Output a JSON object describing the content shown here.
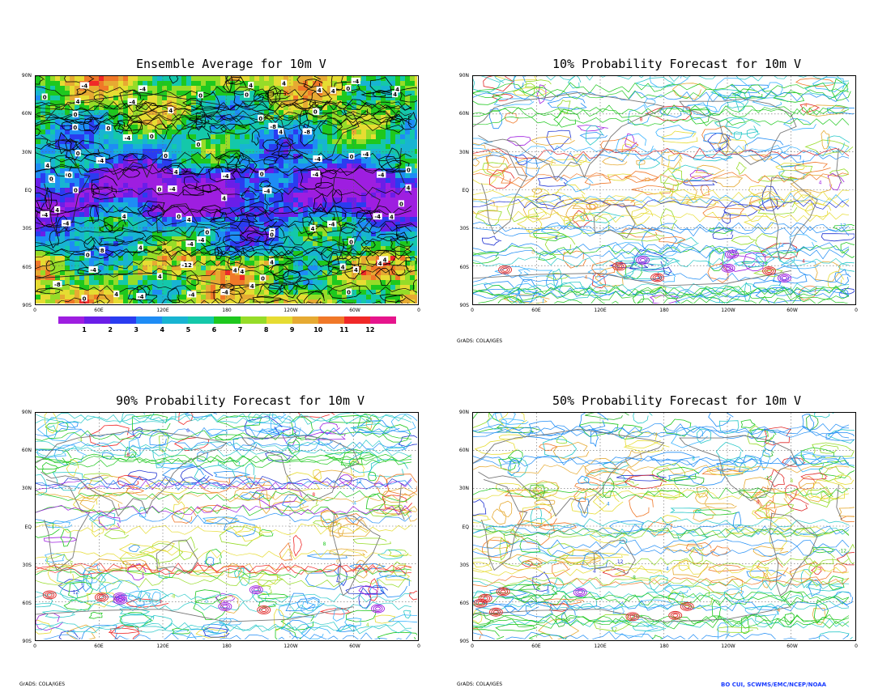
{
  "panels": [
    {
      "title": "Ensemble Average for 10m V"
    },
    {
      "title": "10% Probability Forecast for 10m V"
    },
    {
      "title": "90% Probability Forecast for 10m V"
    },
    {
      "title": "50% Probability Forecast for 10m V"
    }
  ],
  "lat_labels": [
    "90N",
    "60N",
    "30N",
    "EQ",
    "30S",
    "60S",
    "90S"
  ],
  "lon_labels": [
    "0",
    "60E",
    "120E",
    "180",
    "120W",
    "60W",
    "0"
  ],
  "colorbar": {
    "labels": [
      "1",
      "2",
      "3",
      "4",
      "5",
      "6",
      "7",
      "8",
      "9",
      "10",
      "11",
      "12"
    ],
    "colors": [
      "#9e1ee0",
      "#6a1ee8",
      "#2a3cf0",
      "#1e8cf5",
      "#18b4d2",
      "#14c8aa",
      "#1ec81e",
      "#96dc28",
      "#e6dc32",
      "#e6aa32",
      "#f07828",
      "#f02828",
      "#e6148c"
    ]
  },
  "contour_labels": [
    "-4",
    "0",
    "4",
    "-8",
    "12",
    "-12",
    "8"
  ],
  "credits": {
    "grads_credit": "GrADS: COLA/IGES",
    "footer": "BO CUI, SCWMS/EMC/NCEP/NOAA"
  },
  "chart_data": [
    {
      "type": "heatmap",
      "title": "Ensemble Average for 10m V",
      "xlabel": "",
      "ylabel": "",
      "x_ticks": [
        "0",
        "60E",
        "120E",
        "180",
        "120W",
        "60W",
        "0"
      ],
      "y_ticks": [
        "90N",
        "60N",
        "30N",
        "EQ",
        "30S",
        "60S",
        "90S"
      ],
      "colorbar_levels": [
        1,
        2,
        3,
        4,
        5,
        6,
        7,
        8,
        9,
        10,
        11,
        12
      ],
      "contour_labels": [
        -12,
        -8,
        -4,
        0,
        4,
        8,
        12
      ]
    },
    {
      "type": "heatmap",
      "title": "10% Probability Forecast for 10m V",
      "x_ticks": [
        "0",
        "60E",
        "120E",
        "180",
        "120W",
        "60W",
        "0"
      ],
      "y_ticks": [
        "90N",
        "60N",
        "30N",
        "EQ",
        "30S",
        "60S",
        "90S"
      ]
    },
    {
      "type": "heatmap",
      "title": "90% Probability Forecast for 10m V",
      "x_ticks": [
        "0",
        "60E",
        "120E",
        "180",
        "120W",
        "60W",
        "0"
      ],
      "y_ticks": [
        "90N",
        "60N",
        "30N",
        "EQ",
        "30S",
        "60S",
        "90S"
      ]
    },
    {
      "type": "heatmap",
      "title": "50% Probability Forecast for 10m V",
      "x_ticks": [
        "0",
        "60E",
        "120E",
        "180",
        "120W",
        "60W",
        "0"
      ],
      "y_ticks": [
        "90N",
        "60N",
        "30N",
        "EQ",
        "30S",
        "60S",
        "90S"
      ]
    }
  ]
}
